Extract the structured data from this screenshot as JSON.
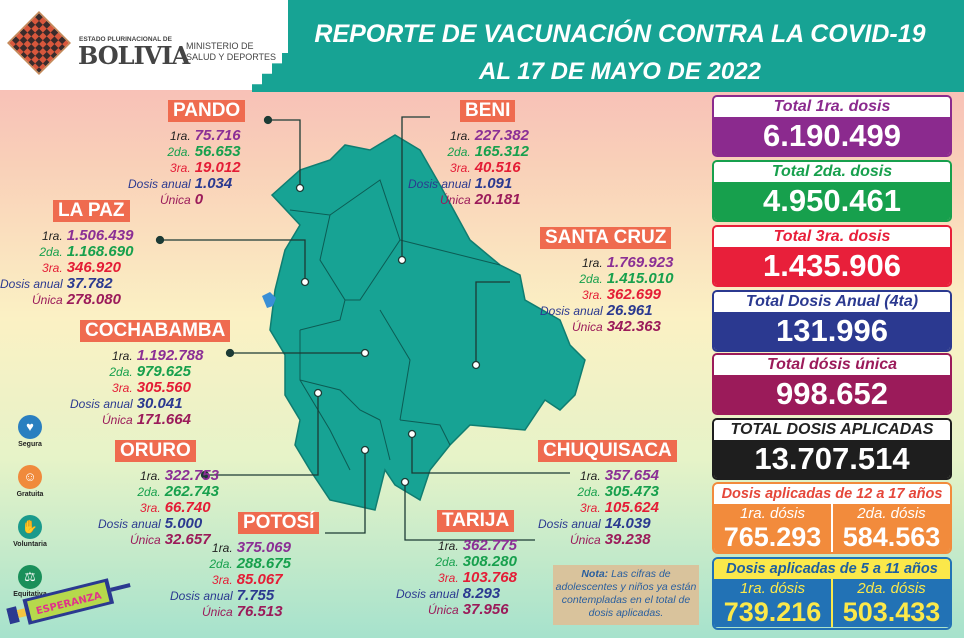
{
  "header": {
    "title_line1": "REPORTE DE VACUNACIÓN CONTRA LA COVID-19",
    "title_line2": "AL 17 DE MAYO DE 2022",
    "logo_top": "ESTADO PLURINACIONAL DE",
    "logo_name": "BOLIVIA",
    "ministry_line1": "MINISTERIO DE",
    "ministry_line2": "SALUD Y DEPORTES"
  },
  "stat_labels": {
    "first": "1ra.",
    "second": "2da.",
    "third": "3ra.",
    "annual": "Dosis anual",
    "single": "Única"
  },
  "departments": [
    {
      "name": "PANDO",
      "first": "75.716",
      "second": "56.653",
      "third": "19.012",
      "annual": "1.034",
      "single": "0"
    },
    {
      "name": "BENI",
      "first": "227.382",
      "second": "165.312",
      "third": "40.516",
      "annual": "1.091",
      "single": "20.181"
    },
    {
      "name": "LA PAZ",
      "first": "1.506.439",
      "second": "1.168.690",
      "third": "346.920",
      "annual": "37.782",
      "single": "278.080"
    },
    {
      "name": "SANTA CRUZ",
      "first": "1.769.923",
      "second": "1.415.010",
      "third": "362.699",
      "annual": "26.961",
      "single": "342.363"
    },
    {
      "name": "COCHABAMBA",
      "first": "1.192.788",
      "second": "979.625",
      "third": "305.560",
      "annual": "30.041",
      "single": "171.664"
    },
    {
      "name": "ORURO",
      "first": "322.753",
      "second": "262.743",
      "third": "66.740",
      "annual": "5.000",
      "single": "32.657"
    },
    {
      "name": "POTOSÍ",
      "first": "375.069",
      "second": "288.675",
      "third": "85.067",
      "annual": "7.755",
      "single": "76.513"
    },
    {
      "name": "TARIJA",
      "first": "362.775",
      "second": "308.280",
      "third": "103.768",
      "annual": "8.293",
      "single": "37.956"
    },
    {
      "name": "CHUQUISACA",
      "first": "357.654",
      "second": "305.473",
      "third": "105.624",
      "annual": "14.039",
      "single": "39.238"
    }
  ],
  "totals": [
    {
      "label": "Total 1ra. dosis",
      "value": "6.190.499",
      "color": "#8b2a8e"
    },
    {
      "label": "Total 2da. dosis",
      "value": "4.950.461",
      "color": "#17a04d"
    },
    {
      "label": "Total 3ra. dosis",
      "value": "1.435.906",
      "color": "#e81f3a"
    },
    {
      "label": "Total Dosis Anual (4ta)",
      "value": "131.996",
      "color": "#2b3990"
    },
    {
      "label": "Total dósis única",
      "value": "998.652",
      "color": "#9b1b5a"
    },
    {
      "label": "TOTAL DOSIS APLICADAS",
      "value": "13.707.514",
      "color": "#1e1e1e"
    }
  ],
  "age_12_17": {
    "label": "Dosis aplicadas de 12 a 17 años",
    "first_label": "1ra. dósis",
    "first": "765.293",
    "second_label": "2da. dósis",
    "second": "584.563",
    "color": "#f28b3c"
  },
  "age_5_11": {
    "label": "Dosis aplicadas de 5 a 11 años",
    "first_label": "1ra. dósis",
    "first": "739.216",
    "second_label": "2da. dósis",
    "second": "503.433",
    "color": "#2272b5"
  },
  "badges": [
    {
      "label": "Segura",
      "icon": "shield-heart-icon",
      "color": "#2a7fc0"
    },
    {
      "label": "Gratuita",
      "icon": "smile-icon",
      "color": "#f08a3c"
    },
    {
      "label": "Voluntaria",
      "icon": "raised-hand-icon",
      "color": "#1a9a8c"
    },
    {
      "label": "Equitativa",
      "icon": "scales-icon",
      "color": "#1a8f5a"
    }
  ],
  "campaign_logo": "Dosis de ESPERANZA",
  "note": {
    "bold": "Nota:",
    "text": "Las cifras de adolescentes y niños ya están contempladas en el total de dosis aplicadas."
  }
}
